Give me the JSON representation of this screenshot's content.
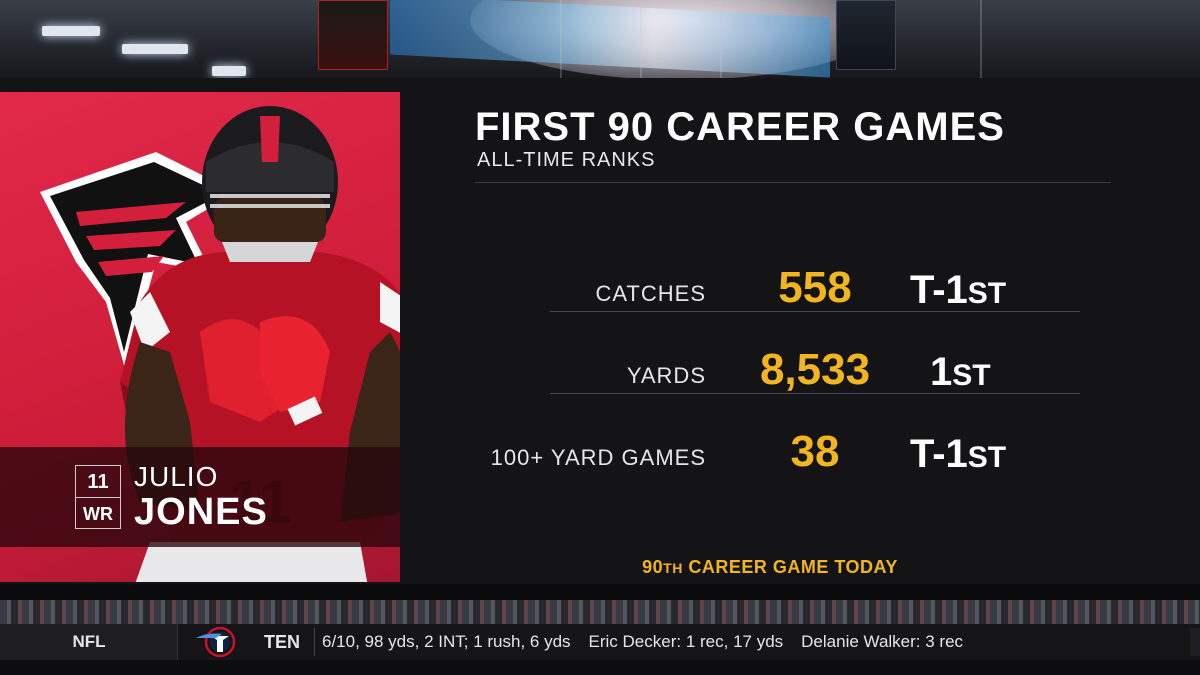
{
  "player": {
    "number": "11",
    "position": "WR",
    "first_name": "JULIO",
    "last_name": "JONES"
  },
  "graphic": {
    "title": "FIRST 90 CAREER GAMES",
    "subtitle": "ALL-TIME RANKS",
    "stats": [
      {
        "label": "CATCHES",
        "value": "558",
        "rank_main": "T-1",
        "rank_suffix": "ST"
      },
      {
        "label": "YARDS",
        "value": "8,533",
        "rank_main": "1",
        "rank_suffix": "ST"
      },
      {
        "label": "100+ YARD GAMES",
        "value": "38",
        "rank_main": "T-1",
        "rank_suffix": "ST"
      }
    ],
    "footnote_number": "90",
    "footnote_suffix": "TH",
    "footnote_text": " CAREER GAME TODAY"
  },
  "ticker": {
    "league": "NFL",
    "team": "TEN",
    "items": [
      "6/10, 98 yds, 2 INT; 1 rush, 6 yds",
      "Eric Decker: 1 rec, 17 yds",
      "Delanie Walker: 3 rec"
    ]
  },
  "colors": {
    "falcons_red": "#d31f3c",
    "stat_gold": "#f2b51f",
    "panel_bg": "#141416"
  },
  "icons": {
    "team_logo": "falcons-logo-icon",
    "ticker_logo": "titans-logo-icon"
  }
}
